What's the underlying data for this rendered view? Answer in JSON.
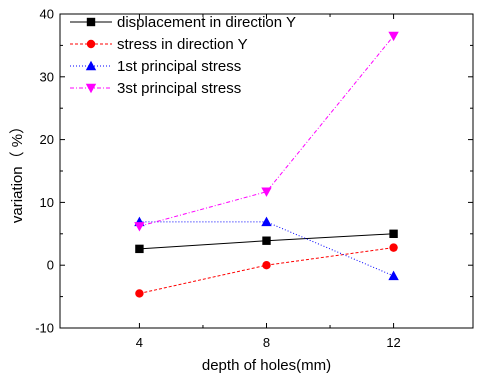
{
  "chart_data": {
    "type": "line",
    "title": "",
    "xlabel": "depth of holes(mm)",
    "ylabel": "variation（ %）",
    "x": [
      4,
      8,
      12
    ],
    "xticks": [
      "4",
      "8",
      "12"
    ],
    "xlim": [
      1.5,
      14.5
    ],
    "ylim": [
      -10,
      40
    ],
    "yticks": [
      "-10",
      "0",
      "10",
      "20",
      "30",
      "40"
    ],
    "grid": false,
    "legend_position": "top-left",
    "series": [
      {
        "name": "displacement in direction Y",
        "values": [
          2.6,
          3.9,
          5.0
        ],
        "color": "#000000",
        "line_style": "solid",
        "marker": "square"
      },
      {
        "name": "stress in direction Y",
        "values": [
          -4.5,
          0.0,
          2.8
        ],
        "color": "#ff0000",
        "line_style": "dashed",
        "marker": "circle"
      },
      {
        "name": "1st principal stress",
        "values": [
          6.9,
          6.9,
          -1.7
        ],
        "color": "#0000ff",
        "line_style": "dotted",
        "marker": "triangle-up"
      },
      {
        "name": "3st principal stress",
        "values": [
          6.2,
          11.7,
          36.5
        ],
        "color": "#ff00ff",
        "line_style": "dashdot",
        "marker": "triangle-down"
      }
    ]
  }
}
